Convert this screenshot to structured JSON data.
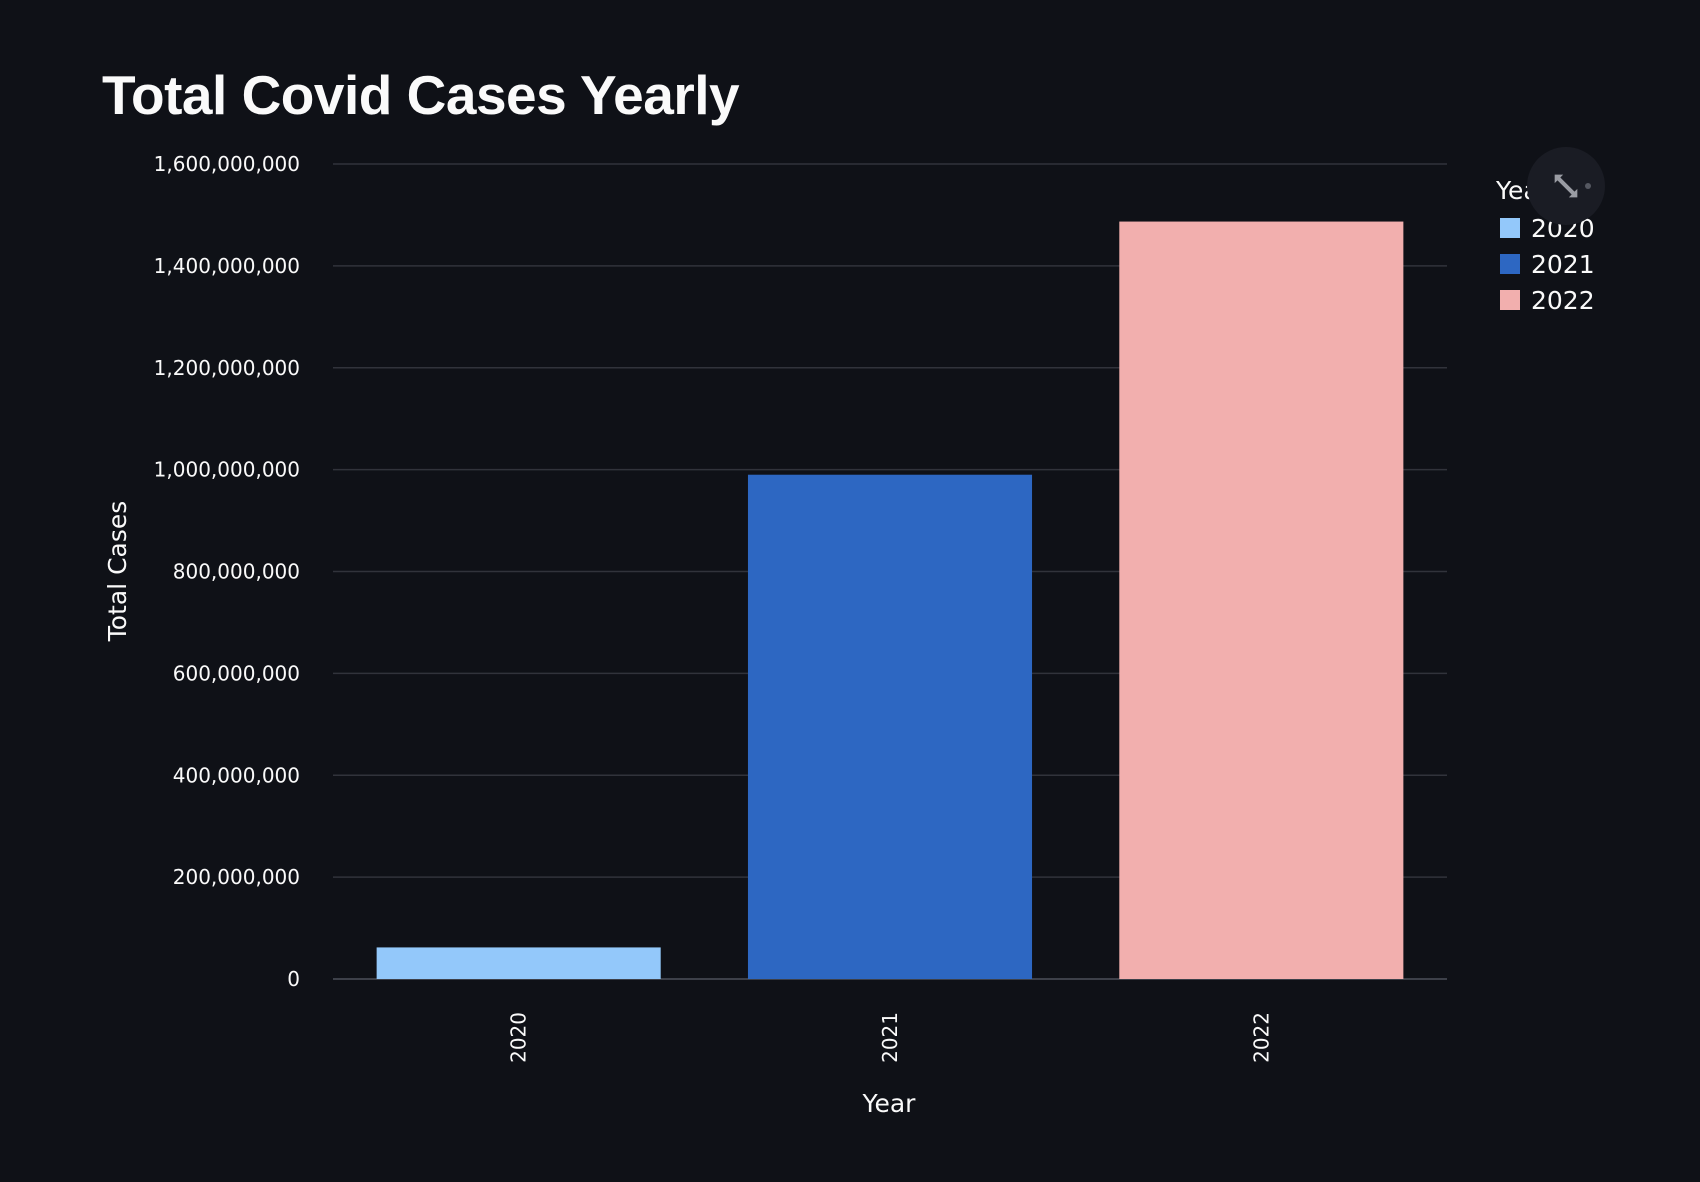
{
  "page": {
    "title": "Total Covid Cases Yearly"
  },
  "toolbar": {
    "expand_icon": "fullscreen-expand-icon"
  },
  "colors": {
    "background": "#0f1117",
    "text": "#fafafa",
    "grid": "#31333b"
  },
  "chart_data": {
    "type": "bar",
    "title": "",
    "xlabel": "Year",
    "ylabel": "Total Cases",
    "categories": [
      "2020",
      "2021",
      "2022"
    ],
    "values": [
      62000000,
      990000000,
      1487000000
    ],
    "colors": [
      "#93c8fa",
      "#2d67c2",
      "#f2afae"
    ],
    "ylim": [
      0,
      1600000000
    ],
    "yticks": [
      0,
      200000000,
      400000000,
      600000000,
      800000000,
      1000000000,
      1200000000,
      1400000000,
      1600000000
    ],
    "ytick_labels": [
      "0",
      "200,000,000",
      "400,000,000",
      "600,000,000",
      "800,000,000",
      "1,000,000,000",
      "1,200,000,000",
      "1,400,000,000",
      "1,600,000,000"
    ],
    "grid": true,
    "legend": {
      "title": "Year",
      "placement": "right",
      "entries": [
        "2020",
        "2021",
        "2022"
      ]
    }
  }
}
